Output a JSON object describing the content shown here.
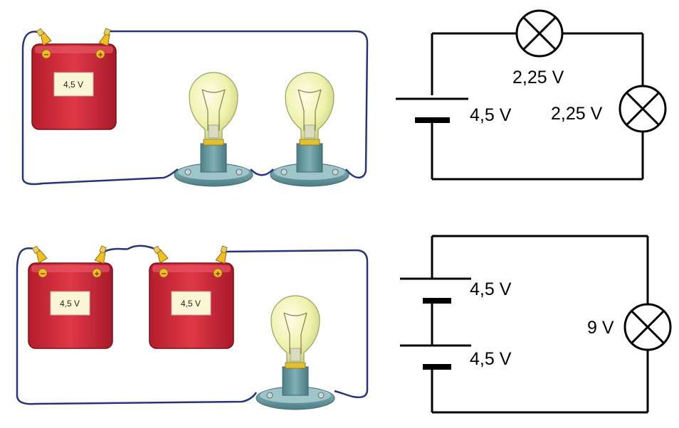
{
  "top_circuit": {
    "battery_label": "4,5 V",
    "schematic": {
      "battery_voltage": "4,5 V",
      "lamp1_voltage": "2,25 V",
      "lamp2_voltage": "2,25 V"
    }
  },
  "bottom_circuit": {
    "battery1_label": "4,5 V",
    "battery2_label": "4,5 V",
    "schematic": {
      "battery1_voltage": "4,5 V",
      "battery2_voltage": "4,5 V",
      "lamp_voltage": "9 V"
    }
  },
  "terminal_signs": {
    "minus": "−",
    "plus": "+"
  },
  "colors": {
    "battery_red": "#d42b3a",
    "battery_dark": "#9c1622",
    "wire_blue": "#27347a",
    "bulb_glass": "#f2f5b8",
    "bulb_base": "#6a9aa0",
    "clip_yellow": "#f0c020"
  }
}
